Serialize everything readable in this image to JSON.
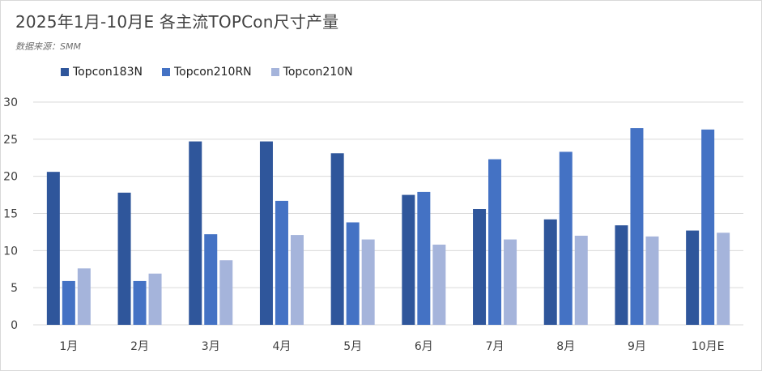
{
  "title": "2025年1月-10月E 各主流TOPCon尺寸产量",
  "source": "数据来源：SMM",
  "colors": {
    "Topcon183N": "#2f569b",
    "Topcon210RN": "#4472c4",
    "Topcon210N": "#a5b4db",
    "gridline": "#d9d9d9",
    "axis_text": "#404040"
  },
  "chart_data": {
    "type": "bar",
    "title": "2025年1月-10月E 各主流TOPCon尺寸产量",
    "xlabel": "",
    "ylabel": "",
    "categories": [
      "1月",
      "2月",
      "3月",
      "4月",
      "5月",
      "6月",
      "7月",
      "8月",
      "9月",
      "10月E"
    ],
    "series": [
      {
        "name": "Topcon183N",
        "values": [
          20.6,
          17.8,
          24.7,
          24.7,
          23.1,
          17.5,
          15.6,
          14.2,
          13.4,
          12.7
        ]
      },
      {
        "name": "Topcon210RN",
        "values": [
          5.9,
          5.9,
          12.2,
          16.7,
          13.8,
          17.9,
          22.3,
          23.3,
          26.5,
          26.3
        ]
      },
      {
        "name": "Topcon210N",
        "values": [
          7.6,
          6.9,
          8.7,
          12.1,
          11.5,
          10.8,
          11.5,
          12.0,
          11.9,
          12.4
        ]
      }
    ],
    "ylim": [
      0,
      30
    ],
    "yticks": [
      0,
      5,
      10,
      15,
      20,
      25,
      30
    ],
    "grid": true,
    "legend_position": "top-left"
  }
}
